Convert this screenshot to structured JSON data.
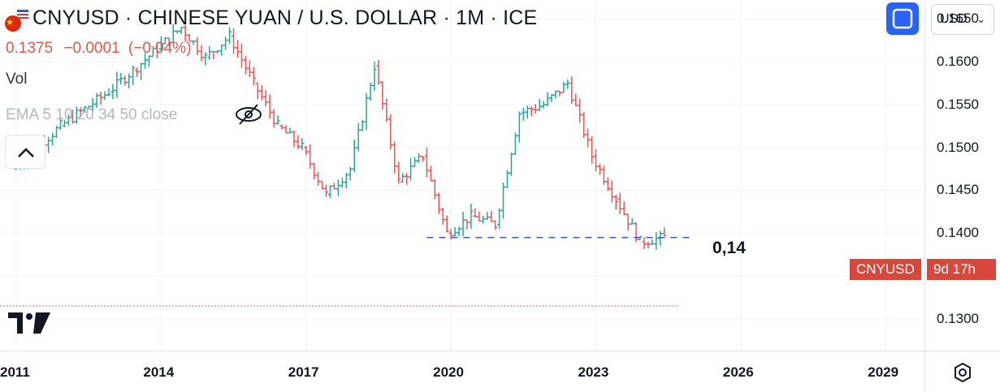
{
  "header": {
    "title": "CNYUSD · CHINESE YUAN / U.S. DOLLAR · 1M · ICE",
    "price": "0.1375",
    "change": "−0.0001",
    "change_pct": "(−0.04%)",
    "vol_label": "Vol",
    "ema_label": "EMA 5 10 20 34 50 close"
  },
  "toolbar": {
    "currency": "USD"
  },
  "price_tag": {
    "symbol": "CNYUSD",
    "countdown": "9d 17h"
  },
  "annotation": {
    "text": "0,14",
    "level": 0.1395
  },
  "colors": {
    "up": "#26a69a",
    "down": "#ef5350",
    "dashed_line": "#3f51b5",
    "tag_bg": "#d9473b"
  },
  "icons": [
    "flags-icon",
    "fullscreen-icon",
    "chevron-up-icon",
    "eye-off-icon",
    "tradingview-logo-icon",
    "settings-icon"
  ],
  "chart_data": {
    "type": "bar",
    "style": "ohlc",
    "title": "CNYUSD · CHINESE YUAN / U.S. DOLLAR · 1M · ICE",
    "ylim": [
      0.1263,
      0.1672
    ],
    "y_ticks": [
      "0.1300",
      "0.1350",
      "0.1400",
      "0.1450",
      "0.1500",
      "0.1550",
      "0.1600",
      "0.1650"
    ],
    "x_ticks": [
      "2011",
      "2014",
      "2017",
      "2020",
      "2023",
      "2026",
      "2029"
    ],
    "xlim": [
      2011.0,
      2029.5
    ],
    "grid": true,
    "ohlc": [
      {
        "t": 2011.0,
        "o": 0.1475,
        "h": 0.151,
        "l": 0.1465,
        "c": 0.15
      },
      {
        "t": 2011.5,
        "o": 0.15,
        "h": 0.153,
        "l": 0.1495,
        "c": 0.1525
      },
      {
        "t": 2012.0,
        "o": 0.1525,
        "h": 0.155,
        "l": 0.1515,
        "c": 0.1545
      },
      {
        "t": 2012.5,
        "o": 0.1545,
        "h": 0.1575,
        "l": 0.154,
        "c": 0.1565
      },
      {
        "t": 2013.0,
        "o": 0.1565,
        "h": 0.1595,
        "l": 0.156,
        "c": 0.159
      },
      {
        "t": 2013.5,
        "o": 0.159,
        "h": 0.1625,
        "l": 0.1585,
        "c": 0.1615
      },
      {
        "t": 2014.0,
        "o": 0.1615,
        "h": 0.1648,
        "l": 0.161,
        "c": 0.164
      },
      {
        "t": 2014.5,
        "o": 0.164,
        "h": 0.1645,
        "l": 0.1595,
        "c": 0.1605
      },
      {
        "t": 2015.0,
        "o": 0.1605,
        "h": 0.164,
        "l": 0.16,
        "c": 0.163
      },
      {
        "t": 2015.5,
        "o": 0.163,
        "h": 0.1635,
        "l": 0.157,
        "c": 0.1575
      },
      {
        "t": 2016.0,
        "o": 0.1575,
        "h": 0.158,
        "l": 0.151,
        "c": 0.1525
      },
      {
        "t": 2016.5,
        "o": 0.1525,
        "h": 0.1545,
        "l": 0.149,
        "c": 0.15
      },
      {
        "t": 2017.0,
        "o": 0.15,
        "h": 0.1505,
        "l": 0.1438,
        "c": 0.1445
      },
      {
        "t": 2017.5,
        "o": 0.1445,
        "h": 0.148,
        "l": 0.144,
        "c": 0.1475
      },
      {
        "t": 2018.0,
        "o": 0.1475,
        "h": 0.1605,
        "l": 0.147,
        "c": 0.1595
      },
      {
        "t": 2018.5,
        "o": 0.1595,
        "h": 0.16,
        "l": 0.145,
        "c": 0.146
      },
      {
        "t": 2019.0,
        "o": 0.146,
        "h": 0.15,
        "l": 0.144,
        "c": 0.149
      },
      {
        "t": 2019.5,
        "o": 0.149,
        "h": 0.1495,
        "l": 0.1395,
        "c": 0.14
      },
      {
        "t": 2020.0,
        "o": 0.14,
        "h": 0.1445,
        "l": 0.1395,
        "c": 0.142
      },
      {
        "t": 2020.5,
        "o": 0.142,
        "h": 0.145,
        "l": 0.1398,
        "c": 0.141
      },
      {
        "t": 2021.0,
        "o": 0.141,
        "h": 0.1545,
        "l": 0.1405,
        "c": 0.154
      },
      {
        "t": 2021.5,
        "o": 0.154,
        "h": 0.156,
        "l": 0.1535,
        "c": 0.155
      },
      {
        "t": 2022.0,
        "o": 0.155,
        "h": 0.1585,
        "l": 0.1545,
        "c": 0.1575
      },
      {
        "t": 2022.5,
        "o": 0.1575,
        "h": 0.158,
        "l": 0.147,
        "c": 0.149
      },
      {
        "t": 2023.0,
        "o": 0.149,
        "h": 0.1495,
        "l": 0.137,
        "c": 0.144
      },
      {
        "t": 2023.5,
        "o": 0.144,
        "h": 0.1495,
        "l": 0.1375,
        "c": 0.139
      },
      {
        "t": 2024.0,
        "o": 0.139,
        "h": 0.142,
        "l": 0.136,
        "c": 0.1395
      },
      {
        "t": 2024.5,
        "o": 0.1395,
        "h": 0.14,
        "l": 0.1375,
        "c": 0.1375
      }
    ]
  }
}
